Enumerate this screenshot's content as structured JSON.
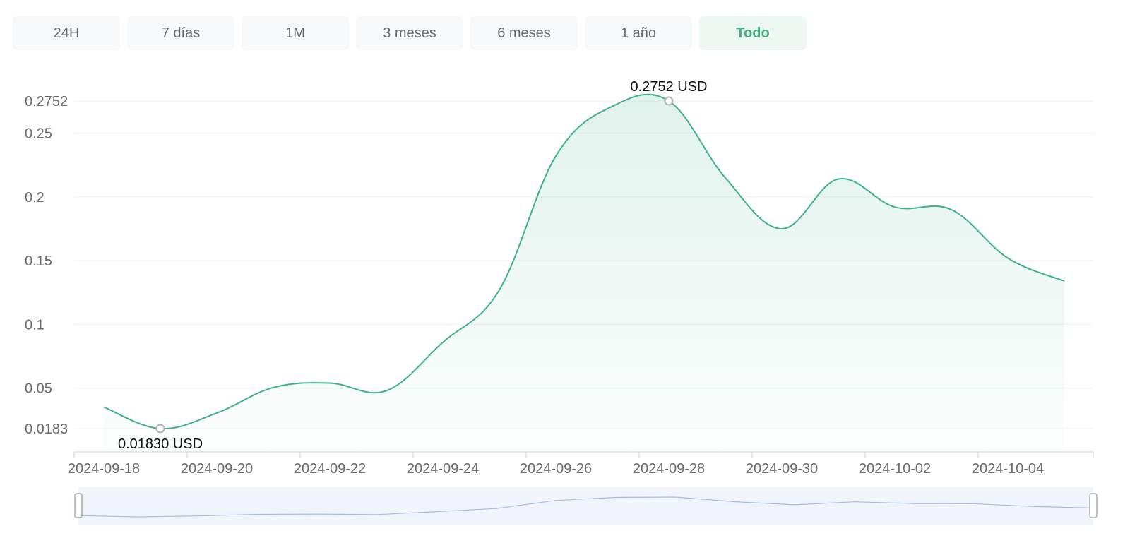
{
  "tabs": [
    {
      "label": "24H"
    },
    {
      "label": "7 días"
    },
    {
      "label": "1M"
    },
    {
      "label": "3 meses"
    },
    {
      "label": "6 meses"
    },
    {
      "label": "1 año"
    },
    {
      "label": "Todo",
      "active": true
    }
  ],
  "colors": {
    "line": "#3fb08c",
    "tab_active": "#3fb07f",
    "slider": "#f2f4fb"
  },
  "chart_data": {
    "type": "area",
    "x_dates": [
      "2024-09-18",
      "2024-09-19",
      "2024-09-20",
      "2024-09-21",
      "2024-09-22",
      "2024-09-23",
      "2024-09-24",
      "2024-09-25",
      "2024-09-26",
      "2024-09-27",
      "2024-09-28",
      "2024-09-29",
      "2024-09-30",
      "2024-10-01",
      "2024-10-02",
      "2024-10-03",
      "2024-10-04",
      "2024-10-05"
    ],
    "values": [
      0.0352,
      0.0183,
      0.0305,
      0.0505,
      0.054,
      0.048,
      0.086,
      0.127,
      0.232,
      0.271,
      0.2752,
      0.215,
      0.175,
      0.214,
      0.192,
      0.19,
      0.152,
      0.134
    ],
    "yticks": [
      "0.0183",
      "0.05",
      "0.1",
      "0.15",
      "0.2",
      "0.25",
      "0.2752"
    ],
    "ylim": [
      0,
      0.2752
    ],
    "xticks": [
      "2024-09-18",
      "2024-09-20",
      "2024-09-22",
      "2024-09-24",
      "2024-09-26",
      "2024-09-28",
      "2024-09-30",
      "2024-10-02",
      "2024-10-04"
    ],
    "max_label": {
      "value": "0.2752",
      "unit": "USD",
      "date": "2024-09-28"
    },
    "min_label": {
      "value": "0.01830",
      "unit": "USD",
      "date": "2024-09-19"
    },
    "grid": true
  }
}
